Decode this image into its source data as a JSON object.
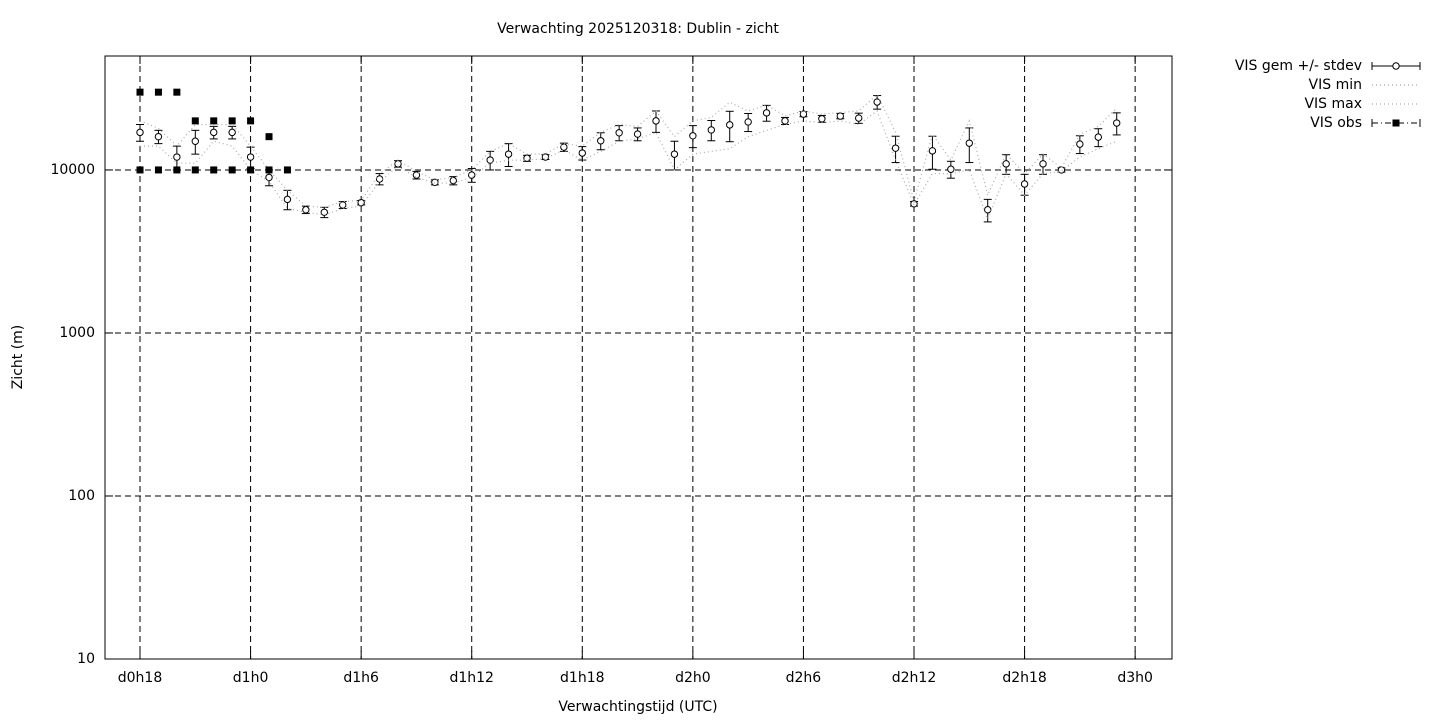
{
  "chart_data": {
    "type": "errorbar",
    "title": "Verwachting 2025120318: Dublin - zicht",
    "xlabel": "Verwachtingstijd (UTC)",
    "ylabel": "Zicht (m)",
    "log_y": true,
    "grid": true,
    "legend": "outside-top-right",
    "xlim": [
      16.1,
      74
    ],
    "ylim": [
      10,
      50000
    ],
    "yticks": [
      10,
      100,
      1000,
      10000
    ],
    "xticks": [
      {
        "value": 18,
        "label": "d0h18"
      },
      {
        "value": 24,
        "label": "d1h0"
      },
      {
        "value": 30,
        "label": "d1h6"
      },
      {
        "value": 36,
        "label": "d1h12"
      },
      {
        "value": 42,
        "label": "d1h18"
      },
      {
        "value": 48,
        "label": "d2h0"
      },
      {
        "value": 54,
        "label": "d2h6"
      },
      {
        "value": 60,
        "label": "d2h12"
      },
      {
        "value": 66,
        "label": "d2h18"
      },
      {
        "value": 72,
        "label": "d3h0"
      }
    ],
    "x": [
      18,
      19,
      20,
      21,
      22,
      23,
      24,
      25,
      26,
      27,
      28,
      29,
      30,
      31,
      32,
      33,
      34,
      35,
      36,
      37,
      38,
      39,
      40,
      41,
      42,
      43,
      44,
      45,
      46,
      47,
      48,
      49,
      50,
      51,
      52,
      53,
      54,
      55,
      56,
      57,
      58,
      59,
      60,
      61,
      62,
      63,
      64,
      65,
      66,
      67,
      68,
      69,
      70,
      71
    ],
    "series": [
      {
        "name": "VIS gem +/- stdev",
        "color": "#000000",
        "style": "errorbars",
        "values": [
          17000,
          16000,
          12000,
          15000,
          17000,
          17000,
          12000,
          9000,
          6600,
          5700,
          5500,
          6100,
          6300,
          8800,
          10900,
          9300,
          8400,
          8600,
          9300,
          11500,
          12500,
          11800,
          12000,
          13800,
          12700,
          15100,
          16900,
          16600,
          20000,
          12500,
          16200,
          17600,
          18900,
          19700,
          22400,
          20000,
          22000,
          20600,
          21400,
          20800,
          26100,
          13600,
          6200,
          13100,
          10100,
          14600,
          5700,
          10900,
          8200,
          10900,
          10000,
          14400,
          15900,
          19400
        ],
        "errors": [
          2000,
          1500,
          2000,
          2500,
          1500,
          1500,
          1800,
          1000,
          900,
          300,
          400,
          300,
          200,
          700,
          500,
          500,
          300,
          500,
          900,
          1500,
          2000,
          500,
          400,
          800,
          1200,
          1800,
          1800,
          1500,
          3000,
          2500,
          2500,
          2500,
          4000,
          2500,
          2500,
          1000,
          800,
          1000,
          800,
          1500,
          2500,
          2500,
          200,
          3000,
          1200,
          3500,
          900,
          1500,
          1200,
          1500,
          300,
          1800,
          2000,
          3000
        ]
      },
      {
        "name": "VIS min",
        "color": "#aaaaaa",
        "style": "dotted",
        "values": [
          14000,
          14000,
          11000,
          11000,
          15000,
          14000,
          10000,
          8500,
          5800,
          5500,
          5300,
          5800,
          6000,
          8500,
          10500,
          9000,
          8300,
          8300,
          9000,
          11000,
          11500,
          11500,
          11700,
          13300,
          11500,
          13000,
          15000,
          15500,
          17000,
          10000,
          12500,
          13000,
          13500,
          16000,
          17500,
          19000,
          20000,
          19500,
          20000,
          19000,
          23000,
          11500,
          6100,
          9500,
          9500,
          10000,
          5000,
          9500,
          7000,
          9500,
          9800,
          12000,
          13500,
          15000
        ]
      },
      {
        "name": "VIS max",
        "color": "#aaaaaa",
        "style": "dotted",
        "values": [
          20000,
          18000,
          14000,
          19000,
          19000,
          19000,
          14000,
          10000,
          7500,
          6000,
          5900,
          6400,
          6500,
          9500,
          11500,
          9800,
          8700,
          9000,
          10000,
          13000,
          14500,
          12500,
          12500,
          14500,
          14000,
          17000,
          19000,
          18500,
          23000,
          16000,
          20000,
          21000,
          26000,
          23000,
          25000,
          21500,
          23000,
          22000,
          22500,
          23000,
          29000,
          17000,
          6400,
          16500,
          11500,
          20000,
          7000,
          12500,
          9500,
          12500,
          10300,
          16500,
          18500,
          24000
        ]
      },
      {
        "name": "VIS obs",
        "color": "#000000",
        "style": "squares",
        "x": [
          18,
          18,
          19,
          19,
          20,
          20,
          21,
          21,
          22,
          22,
          23,
          23,
          24,
          24,
          25,
          25,
          26
        ],
        "values": [
          30000,
          10000,
          30000,
          10000,
          30000,
          10000,
          20000,
          10000,
          20000,
          10000,
          20000,
          10000,
          20000,
          10000,
          16000,
          10000,
          10000
        ]
      }
    ]
  }
}
